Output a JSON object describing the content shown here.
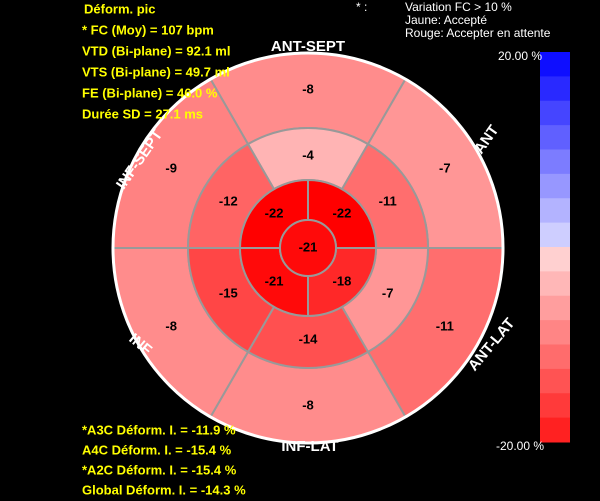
{
  "header": {
    "title": "Déform. pic",
    "metrics": [
      "* FC (Moy) = 107 bpm",
      "VTD (Bi-plane) = 92.1 ml",
      "VTS (Bi-plane) = 49.7 ml",
      "FE (Bi-plane) = 46.0 %",
      "Durée SD = 27.1 ms"
    ]
  },
  "legend": {
    "star": "* :",
    "lines": [
      "Variation FC > 10 %",
      "Jaune: Accepté",
      "Rouge: Accepter en attente"
    ]
  },
  "colorbar": {
    "max": {
      "value": 20,
      "label": "20.00 %"
    },
    "min": {
      "value": -20,
      "label": "-20.00 %"
    }
  },
  "walls": [
    "ANT-SEPT",
    "ANT",
    "ANT-LAT",
    "INF-LAT",
    "INF",
    "INF-SEPT"
  ],
  "bullseye": {
    "basal": [
      -8,
      -7,
      -11,
      -8,
      -8,
      -9
    ],
    "mid": [
      -4,
      -11,
      -7,
      -14,
      -15,
      -12
    ],
    "apical": [
      -22,
      -18,
      -21,
      -22
    ],
    "apex": -21
  },
  "footer": [
    "*A3C Déform. I. = -11.9 %",
    "A4C Déform. I. = -15.4 %",
    "*A2C Déform. I. = -15.4 %",
    "Global Déform. I. = -14.3 %"
  ]
}
